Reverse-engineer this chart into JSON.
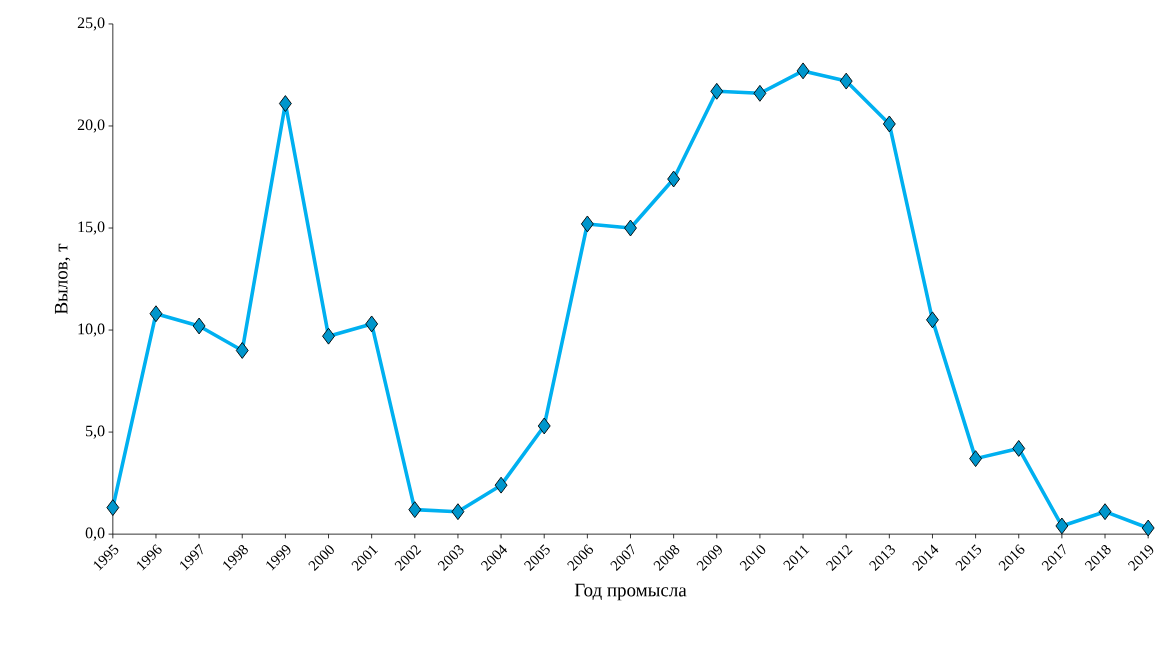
{
  "chart_data": {
    "type": "line",
    "xlabel": "Год промысла",
    "ylabel": "Вылов, т",
    "categories": [
      "1995",
      "1996",
      "1997",
      "1998",
      "1999",
      "2000",
      "2001",
      "2002",
      "2003",
      "2004",
      "2005",
      "2006",
      "2007",
      "2008",
      "2009",
      "2010",
      "2011",
      "2012",
      "2013",
      "2014",
      "2015",
      "2016",
      "2017",
      "2018",
      "2019"
    ],
    "series": [
      {
        "color": "#00b0f0",
        "values": [
          1.3,
          10.8,
          10.2,
          9.0,
          21.1,
          9.7,
          10.3,
          1.2,
          1.1,
          2.4,
          5.3,
          15.2,
          15.0,
          17.4,
          21.7,
          21.6,
          22.7,
          22.2,
          20.1,
          10.5,
          3.7,
          4.2,
          0.4,
          1.1,
          0.3
        ]
      }
    ],
    "ylim": [
      0,
      25
    ],
    "yticks": [
      {
        "value": 0,
        "label": "0,0"
      },
      {
        "value": 5,
        "label": "5,0"
      },
      {
        "value": 10,
        "label": "10,0"
      },
      {
        "value": 15,
        "label": "15,0"
      },
      {
        "value": 20,
        "label": "20,0"
      },
      {
        "value": 25,
        "label": "25,0"
      }
    ],
    "marker": "diamond",
    "line_style": "solid"
  }
}
